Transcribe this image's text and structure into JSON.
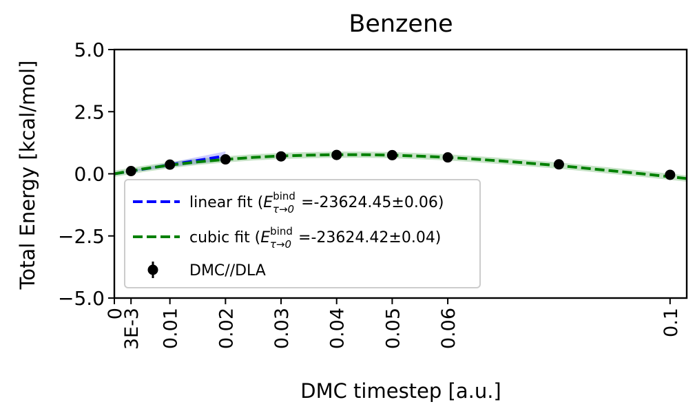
{
  "chart_data": {
    "type": "line",
    "title": "Benzene",
    "xlabel": "DMC timestep [a.u.]",
    "ylabel": "Total Energy [kcal/mol]",
    "xlim": [
      0,
      0.103
    ],
    "ylim": [
      -5.0,
      5.0
    ],
    "xticks": [
      {
        "value": 0,
        "label": "0"
      },
      {
        "value": 0.003,
        "label": "3E-3"
      },
      {
        "value": 0.01,
        "label": "0.01"
      },
      {
        "value": 0.02,
        "label": "0.02"
      },
      {
        "value": 0.03,
        "label": "0.03"
      },
      {
        "value": 0.04,
        "label": "0.04"
      },
      {
        "value": 0.05,
        "label": "0.05"
      },
      {
        "value": 0.06,
        "label": "0.06"
      },
      {
        "value": 0.1,
        "label": "0.1"
      }
    ],
    "yticks": [
      {
        "value": 5.0,
        "label": "5.0"
      },
      {
        "value": 2.5,
        "label": "2.5"
      },
      {
        "value": 0.0,
        "label": "0.0"
      },
      {
        "value": -2.5,
        "label": "−2.5"
      },
      {
        "value": -5.0,
        "label": "−5.0"
      }
    ],
    "grid": false,
    "legend_position": "lower-left",
    "series": [
      {
        "kind": "line",
        "name": "linear fit",
        "legend_label": "linear fit (",
        "legend_sym": "E",
        "legend_sup": "bind",
        "legend_sub": "τ→0",
        "legend_value": "=-23624.45±0.06)",
        "color": "#0000ff",
        "x": [
          0,
          0.02
        ],
        "y": [
          0.0,
          0.72
        ],
        "band_upper": [
          0.0,
          0.9
        ],
        "band_lower": [
          0.0,
          0.54
        ]
      },
      {
        "kind": "line",
        "name": "cubic fit",
        "legend_label": "cubic fit (",
        "legend_sym": "E",
        "legend_sup": "bind",
        "legend_sub": "τ→0",
        "legend_value": "=-23624.42±0.04)",
        "color": "#008000",
        "x": [
          0,
          0.005,
          0.01,
          0.015,
          0.02,
          0.025,
          0.03,
          0.035,
          0.04,
          0.045,
          0.05,
          0.055,
          0.06,
          0.065,
          0.07,
          0.075,
          0.08,
          0.085,
          0.09,
          0.095,
          0.1,
          0.103
        ],
        "y": [
          0.0,
          0.19,
          0.35,
          0.48,
          0.58,
          0.66,
          0.72,
          0.75,
          0.77,
          0.77,
          0.75,
          0.71,
          0.66,
          0.59,
          0.51,
          0.42,
          0.33,
          0.22,
          0.11,
          0.0,
          -0.12,
          -0.19
        ]
      },
      {
        "kind": "points",
        "name": "DMC//DLA",
        "legend_label": "DMC//DLA",
        "color": "#000000",
        "x": [
          0.003,
          0.01,
          0.02,
          0.03,
          0.04,
          0.05,
          0.06,
          0.08,
          0.1
        ],
        "y": [
          0.11,
          0.37,
          0.58,
          0.7,
          0.76,
          0.75,
          0.66,
          0.38,
          -0.04
        ]
      }
    ]
  }
}
